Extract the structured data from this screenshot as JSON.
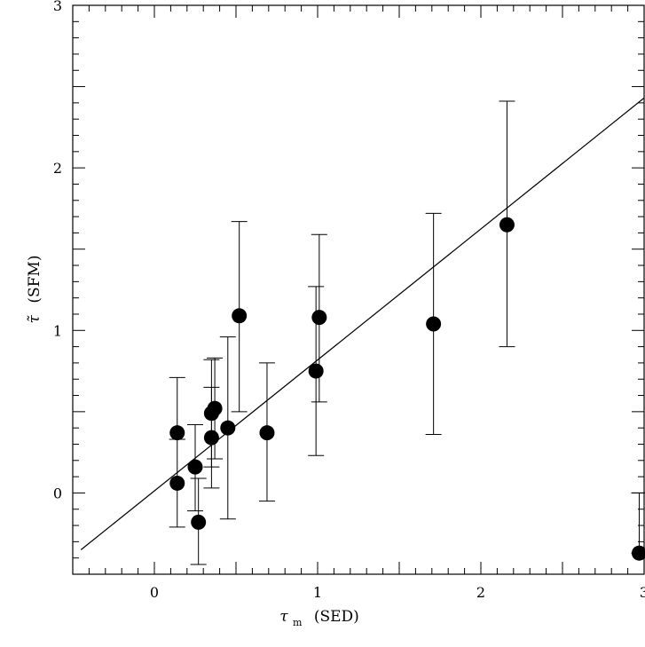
{
  "chart_data": {
    "type": "scatter",
    "title": "",
    "xlabel": {
      "symbol": "τ",
      "subscript": "m",
      "text": "(SED)"
    },
    "ylabel": {
      "symbol": "τ̃",
      "text": "(SFM)"
    },
    "xlim": [
      -0.5,
      3.0
    ],
    "ylim": [
      -0.5,
      3.0
    ],
    "xticks": [
      0,
      1,
      2,
      3
    ],
    "xtick_labels": [
      "0",
      "1",
      "2",
      "3"
    ],
    "yticks": [
      0,
      1,
      2,
      3
    ],
    "ytick_labels": [
      "0",
      "1",
      "2",
      "3"
    ],
    "grid": false,
    "points": [
      {
        "x": 0.14,
        "y": 0.37,
        "ylo": 0.33,
        "yhi": 0.71
      },
      {
        "x": 0.14,
        "y": 0.06,
        "ylo": -0.21,
        "yhi": 0.33
      },
      {
        "x": 0.25,
        "y": 0.16,
        "ylo": -0.11,
        "yhi": 0.42
      },
      {
        "x": 0.27,
        "y": -0.18,
        "ylo": -0.44,
        "yhi": 0.09
      },
      {
        "x": 0.35,
        "y": 0.49,
        "ylo": 0.16,
        "yhi": 0.82
      },
      {
        "x": 0.35,
        "y": 0.34,
        "ylo": 0.03,
        "yhi": 0.65
      },
      {
        "x": 0.37,
        "y": 0.52,
        "ylo": 0.21,
        "yhi": 0.83
      },
      {
        "x": 0.45,
        "y": 0.4,
        "ylo": -0.16,
        "yhi": 0.96
      },
      {
        "x": 0.52,
        "y": 1.09,
        "ylo": 0.5,
        "yhi": 1.67
      },
      {
        "x": 0.69,
        "y": 0.37,
        "ylo": -0.05,
        "yhi": 0.8
      },
      {
        "x": 0.99,
        "y": 0.75,
        "ylo": 0.23,
        "yhi": 1.27
      },
      {
        "x": 1.01,
        "y": 1.08,
        "ylo": 0.56,
        "yhi": 1.59
      },
      {
        "x": 1.71,
        "y": 1.04,
        "ylo": 0.36,
        "yhi": 1.72
      },
      {
        "x": 2.16,
        "y": 1.65,
        "ylo": 0.9,
        "yhi": 2.41
      },
      {
        "x": 2.97,
        "y": -0.37,
        "ylo": -0.37,
        "yhi": 0.0
      }
    ],
    "fit_line": {
      "x": [
        -0.45,
        3.0
      ],
      "y": [
        -0.35,
        2.43
      ]
    }
  }
}
